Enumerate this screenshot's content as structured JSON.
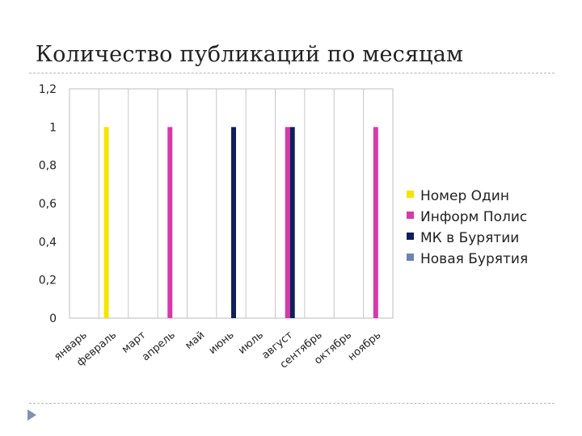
{
  "slide": {
    "title": "Количество публикаций по месяцам"
  },
  "chart_data": {
    "type": "bar",
    "title": "",
    "xlabel": "",
    "ylabel": "",
    "ylim": [
      0,
      1.2
    ],
    "yticks": [
      "0",
      "0,2",
      "0,4",
      "0,6",
      "0,8",
      "1",
      "1,2"
    ],
    "grid": "vertical",
    "legend_position": "right",
    "categories": [
      "январь",
      "февраль",
      "март",
      "апрель",
      "май",
      "июнь",
      "июль",
      "август",
      "сентябрь",
      "октябрь",
      "ноябрь"
    ],
    "series": [
      {
        "name": "Номер Один",
        "color": "#f2e600",
        "values": [
          0,
          1,
          0,
          0,
          0,
          0,
          0,
          0,
          0,
          0,
          0
        ]
      },
      {
        "name": "Информ Полис",
        "color": "#d63aa8",
        "values": [
          0,
          0,
          0,
          1,
          0,
          0,
          0,
          1,
          0,
          0,
          1
        ]
      },
      {
        "name": "МК в Бурятии",
        "color": "#0f1f5c",
        "values": [
          0,
          0,
          0,
          0,
          0,
          1,
          0,
          1,
          0,
          0,
          0
        ]
      },
      {
        "name": "Новая Бурятия",
        "color": "#6f82b0",
        "values": [
          0,
          0,
          0,
          0,
          0,
          0,
          0,
          0,
          0,
          0,
          0
        ]
      }
    ]
  }
}
